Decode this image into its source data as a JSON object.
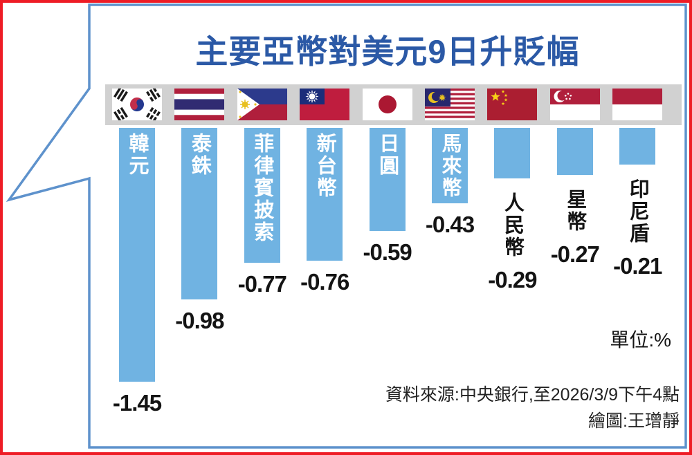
{
  "title": "主要亞幣對美元9日升貶幅",
  "unit_label": "單位:%",
  "source_line": "資料來源:中央銀行,至2026/3/9下午4點",
  "credit_line": "繪圖:王璔靜",
  "chart_data": {
    "type": "bar",
    "title": "主要亞幣對美元9日升貶幅",
    "unit": "%",
    "categories": [
      "韓元",
      "泰銖",
      "菲律賓披索",
      "新台幣",
      "日圓",
      "馬來幣",
      "人民幣",
      "星幣",
      "印尼盾"
    ],
    "flags": [
      "south-korea",
      "thailand",
      "philippines",
      "taiwan",
      "japan",
      "malaysia",
      "china",
      "singapore",
      "indonesia"
    ],
    "values": [
      -1.45,
      -0.98,
      -0.77,
      -0.76,
      -0.59,
      -0.43,
      -0.29,
      -0.27,
      -0.21
    ],
    "value_labels": [
      "-1.45",
      "-0.98",
      "-0.77",
      "-0.76",
      "-0.59",
      "-0.43",
      "-0.29",
      "-0.27",
      "-0.21"
    ],
    "label_position": [
      "inside",
      "inside",
      "inside",
      "inside",
      "inside",
      "inside",
      "below",
      "below",
      "below"
    ],
    "orientation": "vertical-down",
    "ylim": [
      -1.45,
      0
    ],
    "grid": false,
    "legend": false
  },
  "colors": {
    "border_red": "#ee1c25",
    "bubble_blue": "#5e92cc",
    "title_blue": "#2b59a6",
    "bar_blue": "#70b3e2",
    "strip_gray": "#d1d1d1",
    "text_dark": "#141414",
    "label_white": "#ffffff"
  }
}
